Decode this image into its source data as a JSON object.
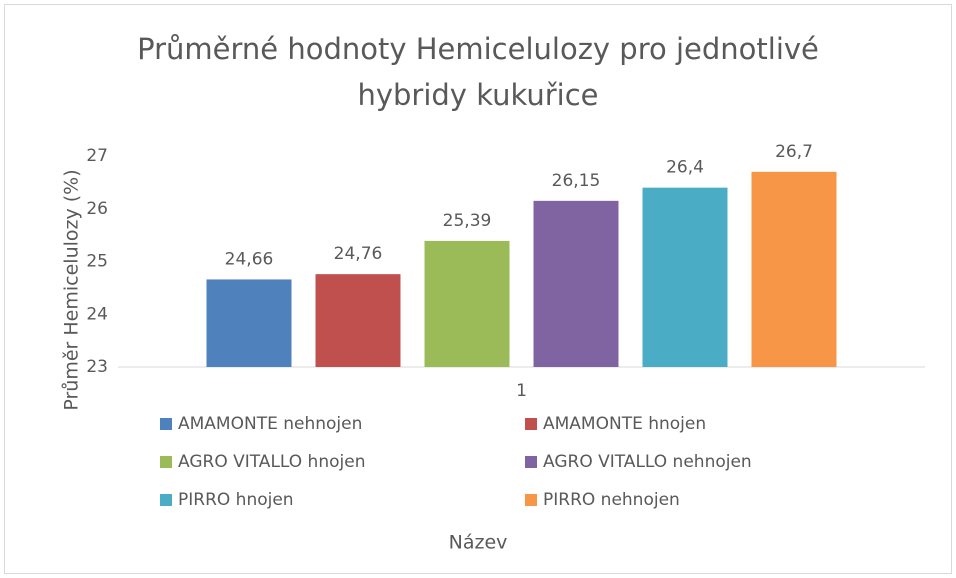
{
  "chart_data": {
    "type": "bar",
    "title": "Průměrné hodnoty Hemicelulozy pro jednotlivé hybridy kukuřice",
    "categories": [
      "1"
    ],
    "series": [
      {
        "name": "AMAMONTE nehnojen",
        "color": "#4f81bd",
        "values": [
          24.66
        ],
        "value_labels": [
          "24,66"
        ]
      },
      {
        "name": "AMAMONTE hnojen",
        "color": "#c0504d",
        "values": [
          24.76
        ],
        "value_labels": [
          "24,76"
        ]
      },
      {
        "name": "AGRO VITALLO hnojen",
        "color": "#9bbb59",
        "values": [
          25.39
        ],
        "value_labels": [
          "25,39"
        ]
      },
      {
        "name": "AGRO VITALLO nehnojen",
        "color": "#8064a2",
        "values": [
          26.15
        ],
        "value_labels": [
          "26,15"
        ]
      },
      {
        "name": "PIRRO hnojen",
        "color": "#4bacc6",
        "values": [
          26.4
        ],
        "value_labels": [
          "26,4"
        ]
      },
      {
        "name": "PIRRO nehnojen",
        "color": "#f79646",
        "values": [
          26.7
        ],
        "value_labels": [
          "26,7"
        ]
      }
    ],
    "ylabel": "Průměr Hemicelulozy (%)",
    "xlabel": "Název",
    "ylim": [
      23,
      27
    ],
    "yticks": [
      23,
      24,
      25,
      26,
      27
    ],
    "grid": false,
    "legend": "bottom"
  }
}
